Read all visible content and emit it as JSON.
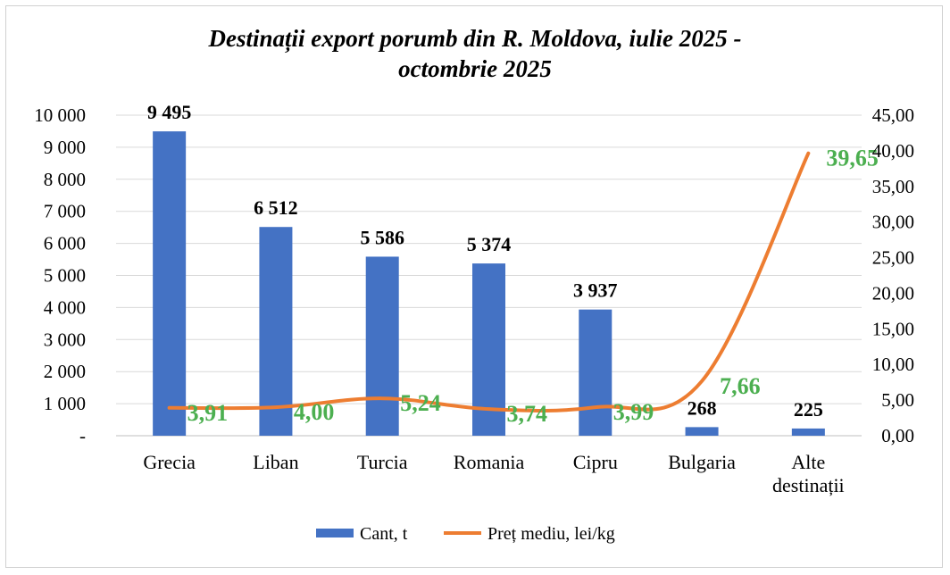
{
  "chart_data": {
    "type": "bar",
    "title_lines": [
      "Destinații export porumb din R. Moldova, iulie 2025 -",
      "octombrie 2025"
    ],
    "categories": [
      [
        "Grecia"
      ],
      [
        "Liban"
      ],
      [
        "Turcia"
      ],
      [
        "Romania"
      ],
      [
        "Cipru"
      ],
      [
        "Bulgaria"
      ],
      [
        "Alte",
        "destinații"
      ]
    ],
    "series": [
      {
        "name": "Cant, t",
        "type": "bar",
        "axis": "left",
        "values": [
          9495,
          6512,
          5586,
          5374,
          3937,
          268,
          225
        ],
        "labels": [
          "9 495",
          "6 512",
          "5 586",
          "5 374",
          "3 937",
          "268",
          "225"
        ],
        "color": "#4472C4"
      },
      {
        "name": "Preț mediu, lei/kg",
        "type": "line",
        "axis": "right",
        "values": [
          3.91,
          4.0,
          5.24,
          3.74,
          3.99,
          7.66,
          39.65
        ],
        "labels": [
          "3,91",
          "4,00",
          "5,24",
          "3,74",
          "3,99",
          "7,66",
          "39,65"
        ],
        "color": "#ED7D31",
        "label_color": "#4CAF50"
      }
    ],
    "y_left": {
      "range": [
        0,
        10000
      ],
      "ticks": [
        0,
        1000,
        2000,
        3000,
        4000,
        5000,
        6000,
        7000,
        8000,
        9000,
        10000
      ],
      "tick_labels": [
        "-",
        "1 000",
        "2 000",
        "3 000",
        "4 000",
        "5 000",
        "6 000",
        "7 000",
        "8 000",
        "9 000",
        "10 000"
      ]
    },
    "y_right": {
      "range": [
        0,
        45
      ],
      "ticks": [
        0,
        5,
        10,
        15,
        20,
        25,
        30,
        35,
        40,
        45
      ],
      "tick_labels": [
        "0,00",
        "5,00",
        "10,00",
        "15,00",
        "20,00",
        "25,00",
        "30,00",
        "35,00",
        "40,00",
        "45,00"
      ]
    },
    "grid": true,
    "legend_position": "bottom"
  }
}
